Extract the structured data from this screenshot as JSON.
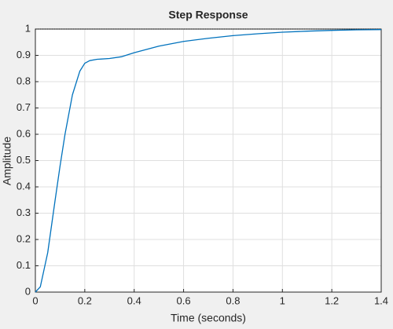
{
  "chart_data": {
    "type": "line",
    "title": "Step Response",
    "x_label": "Time (seconds)",
    "y_label": "Amplitude",
    "x": [
      0,
      0.02,
      0.05,
      0.08,
      0.1,
      0.12,
      0.15,
      0.18,
      0.2,
      0.22,
      0.25,
      0.3,
      0.35,
      0.4,
      0.5,
      0.6,
      0.7,
      0.8,
      0.9,
      1.0,
      1.1,
      1.2,
      1.3,
      1.4
    ],
    "values": [
      0,
      0.02,
      0.15,
      0.35,
      0.48,
      0.6,
      0.75,
      0.84,
      0.87,
      0.88,
      0.885,
      0.888,
      0.895,
      0.91,
      0.935,
      0.953,
      0.965,
      0.975,
      0.982,
      0.988,
      0.992,
      0.995,
      0.997,
      0.998
    ],
    "color": "#0072bd",
    "steady_state": 1,
    "xlim": [
      0,
      1.4
    ],
    "ylim": [
      0,
      1
    ],
    "xticks": [
      0,
      0.2,
      0.4,
      0.6,
      0.8,
      1,
      1.2,
      1.4
    ],
    "yticks": [
      0,
      0.1,
      0.2,
      0.3,
      0.4,
      0.5,
      0.6,
      0.7,
      0.8,
      0.9,
      1
    ],
    "grid": true
  }
}
